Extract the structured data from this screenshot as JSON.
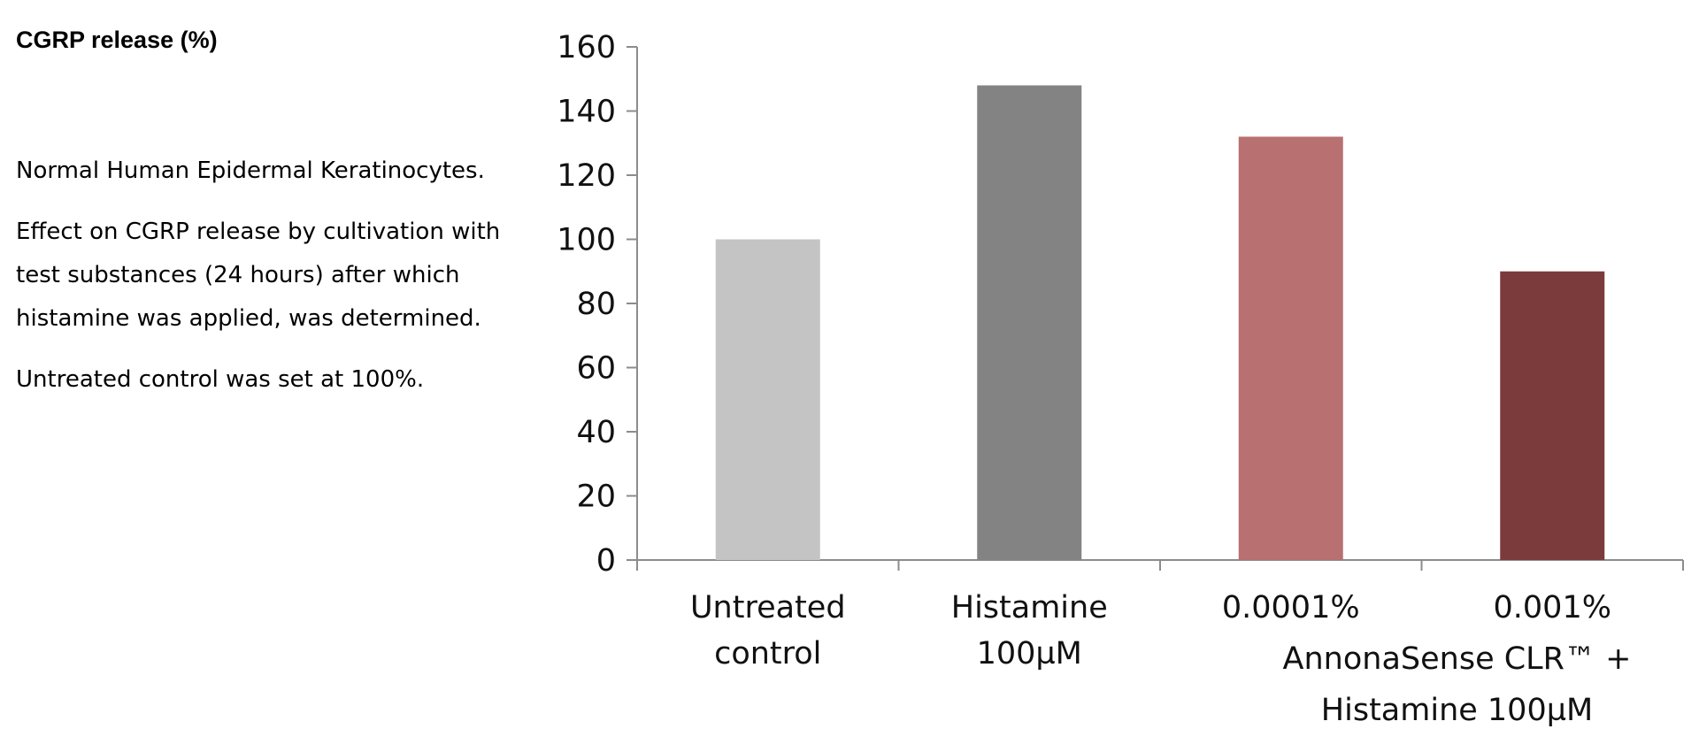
{
  "panel": {
    "title": "CGRP release (%)",
    "paragraphs": [
      "Normal Human Epidermal Keratinocytes.",
      "Effect on CGRP release by cultivation with test substances (24 hours) after which histamine was applied, was determined.",
      "Untreated control was set at 100%."
    ]
  },
  "chart_data": {
    "type": "bar",
    "categories": [
      "Untreated control",
      "Histamine 100µM",
      "0.0001%",
      "0.001%"
    ],
    "values": [
      100,
      148,
      132,
      90
    ],
    "bar_colors": [
      "#c4c4c4",
      "#838383",
      "#b87070",
      "#7b3b3d"
    ],
    "category_label_lines": [
      [
        "Untreated",
        "control"
      ],
      [
        "Histamine",
        "100µM"
      ],
      [
        "0.0001%"
      ],
      [
        "0.001%"
      ]
    ],
    "group_label": [
      "AnnonaSense CLR™ +",
      "Histamine 100µM"
    ],
    "ylim": [
      0,
      160
    ],
    "yticks": [
      0,
      20,
      40,
      60,
      80,
      100,
      120,
      140,
      160
    ],
    "grid": false,
    "legend": "none"
  }
}
